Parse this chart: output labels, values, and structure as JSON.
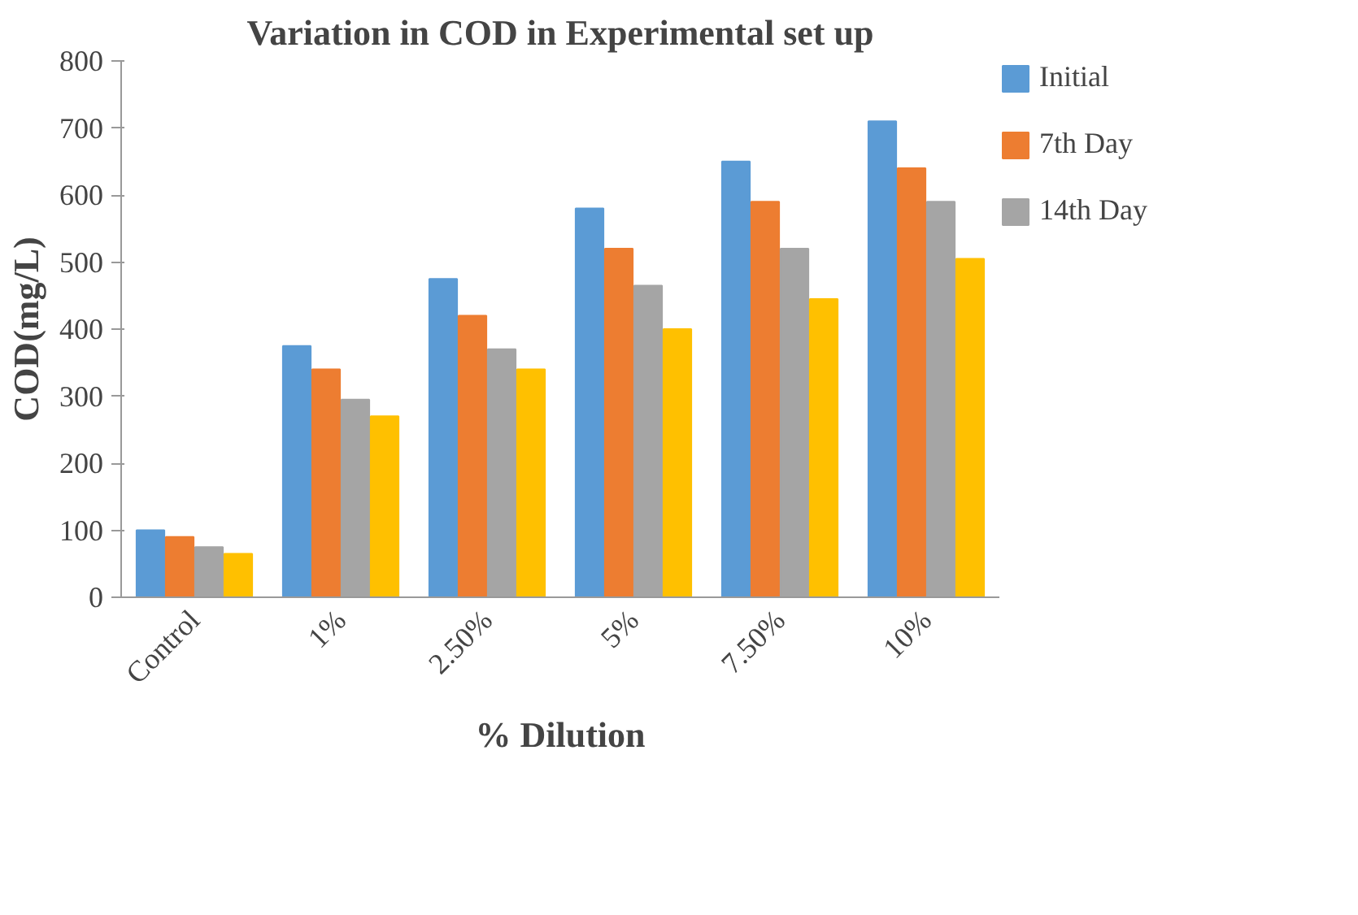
{
  "chart_data": {
    "type": "bar",
    "title": "Variation in COD in Experimental set up",
    "xlabel": "% Dilution",
    "ylabel": "COD(mg/L)",
    "categories": [
      "Control",
      "1%",
      "2.50%",
      "5%",
      "7.50%",
      "10%"
    ],
    "series": [
      {
        "name": "Initial",
        "color": "#5b9bd5",
        "values": [
          100,
          375,
          475,
          580,
          650,
          710
        ]
      },
      {
        "name": "7th Day",
        "color": "#ed7d31",
        "values": [
          90,
          340,
          420,
          520,
          590,
          640
        ]
      },
      {
        "name": "14th Day",
        "color": "#a5a5a5",
        "values": [
          75,
          295,
          370,
          465,
          520,
          590
        ]
      },
      {
        "color": "#ffc000",
        "values": [
          65,
          270,
          340,
          400,
          445,
          505
        ]
      }
    ],
    "ylim": [
      0,
      800
    ],
    "yticks": [
      0,
      100,
      200,
      300,
      400,
      500,
      600,
      700,
      800
    ],
    "grid": false,
    "legend": "right"
  }
}
